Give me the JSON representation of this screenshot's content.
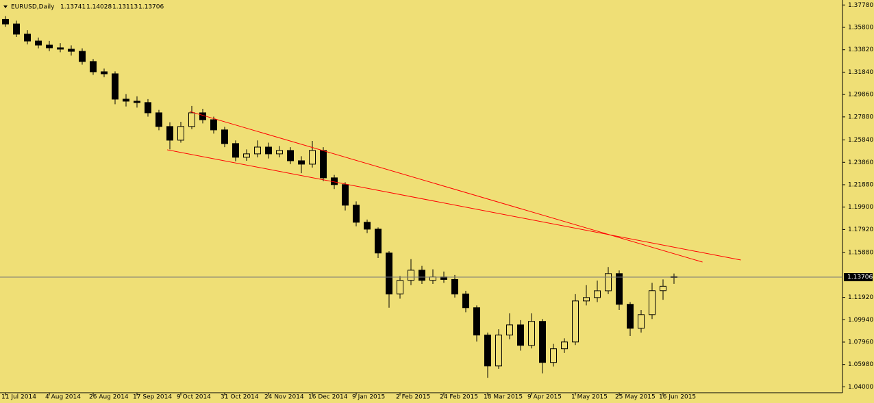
{
  "chart_data": {
    "type": "candlestick",
    "symbol": "EURUSD,Daily",
    "categories": [
      "11 Jul 2014",
      null,
      null,
      null,
      "4 Aug 2014",
      null,
      null,
      null,
      "26 Aug 2014",
      null,
      null,
      null,
      "17 Sep 2014",
      null,
      null,
      null,
      "9 Oct 2014",
      null,
      null,
      null,
      "31 Oct 2014",
      null,
      null,
      null,
      "24 Nov 2014",
      null,
      null,
      null,
      "16 Dec 2014",
      null,
      null,
      null,
      "9 Jan 2015",
      null,
      null,
      null,
      "2 Feb 2015",
      null,
      null,
      null,
      "24 Feb 2015",
      null,
      null,
      null,
      "18 Mar 2015",
      null,
      null,
      null,
      "9 Apr 2015",
      null,
      null,
      null,
      "1 May 2015",
      null,
      null,
      null,
      "25 May 2015",
      null,
      null,
      null,
      "16 Jun 2015",
      null
    ],
    "open": [
      1.365,
      1.361,
      1.352,
      1.3459,
      1.3423,
      1.3399,
      1.3387,
      1.3368,
      1.3278,
      1.3187,
      1.3169,
      1.2945,
      1.2927,
      1.2915,
      1.2824,
      1.2703,
      1.2582,
      1.2703,
      1.2824,
      1.2763,
      1.2673,
      1.2552,
      1.2431,
      1.2461,
      1.2521,
      1.2461,
      1.2491,
      1.24,
      1.237,
      1.2491,
      1.2249,
      1.2189,
      1.2007,
      1.1856,
      1.1795,
      1.1584,
      1.1221,
      1.1342,
      1.1432,
      1.1342,
      1.1372,
      1.135,
      1.1221,
      1.11,
      1.0858,
      1.0585,
      1.0858,
      1.0948,
      1.0767,
      1.0979,
      1.0616,
      1.0737,
      1.0797,
      1.116,
      1.119,
      1.125,
      1.1402,
      1.113,
      1.0918,
      1.1039,
      1.1251,
      1.13741
    ],
    "high": [
      1.368,
      1.364,
      1.3555,
      1.349,
      1.346,
      1.344,
      1.342,
      1.3395,
      1.33,
      1.3215,
      1.319,
      1.299,
      1.297,
      1.2945,
      1.285,
      1.274,
      1.2745,
      1.2885,
      1.286,
      1.279,
      1.27,
      1.258,
      1.25,
      1.258,
      1.256,
      1.253,
      1.252,
      1.244,
      1.2575,
      1.252,
      1.2275,
      1.221,
      1.204,
      1.188,
      1.181,
      1.16,
      1.138,
      1.153,
      1.147,
      1.144,
      1.142,
      1.139,
      1.125,
      1.112,
      1.088,
      1.091,
      1.105,
      1.099,
      1.105,
      1.1,
      1.078,
      1.083,
      1.122,
      1.13,
      1.134,
      1.146,
      1.143,
      1.115,
      1.108,
      1.132,
      1.135,
      1.14028
    ],
    "low": [
      1.3585,
      1.3495,
      1.343,
      1.3395,
      1.337,
      1.336,
      1.333,
      1.325,
      1.316,
      1.314,
      1.29,
      1.288,
      1.287,
      1.279,
      1.267,
      1.25,
      1.256,
      1.268,
      1.273,
      1.264,
      1.252,
      1.2395,
      1.24,
      1.243,
      1.242,
      1.243,
      1.237,
      1.229,
      1.234,
      1.222,
      1.215,
      1.196,
      1.182,
      1.176,
      1.154,
      1.11,
      1.118,
      1.13,
      1.131,
      1.131,
      1.132,
      1.119,
      1.106,
      1.08,
      1.048,
      1.056,
      1.082,
      1.072,
      1.074,
      1.052,
      1.058,
      1.07,
      1.077,
      1.112,
      1.115,
      1.122,
      1.108,
      1.085,
      1.088,
      1.1,
      1.117,
      1.13113
    ],
    "close": [
      1.361,
      1.352,
      1.3459,
      1.3423,
      1.3399,
      1.3387,
      1.3368,
      1.3278,
      1.3187,
      1.3169,
      1.2945,
      1.2927,
      1.2915,
      1.2824,
      1.2703,
      1.2582,
      1.2703,
      1.2824,
      1.2763,
      1.2673,
      1.2552,
      1.2431,
      1.2461,
      1.2521,
      1.2461,
      1.2491,
      1.24,
      1.237,
      1.2491,
      1.2249,
      1.2189,
      1.2007,
      1.1856,
      1.1795,
      1.1584,
      1.1221,
      1.1342,
      1.1432,
      1.1342,
      1.1372,
      1.135,
      1.1221,
      1.11,
      1.0858,
      1.0585,
      1.0858,
      1.0948,
      1.0767,
      1.0979,
      1.0616,
      1.0737,
      1.0797,
      1.116,
      1.119,
      1.125,
      1.1402,
      1.113,
      1.0918,
      1.1039,
      1.1251,
      1.129,
      1.13706
    ],
    "ylim": [
      1.036,
      1.381
    ],
    "yticks": [
      {
        "value": 1.3778,
        "label": "1.37780"
      },
      {
        "value": 1.358,
        "label": "1.35800"
      },
      {
        "value": 1.3382,
        "label": "1.33820"
      },
      {
        "value": 1.3184,
        "label": "1.31840"
      },
      {
        "value": 1.2986,
        "label": "1.29860"
      },
      {
        "value": 1.2788,
        "label": "1.27880"
      },
      {
        "value": 1.2584,
        "label": "1.25840"
      },
      {
        "value": 1.2386,
        "label": "1.23860"
      },
      {
        "value": 1.2188,
        "label": "1.21880"
      },
      {
        "value": 1.199,
        "label": "1.19900"
      },
      {
        "value": 1.1792,
        "label": "1.17920"
      },
      {
        "value": 1.1588,
        "label": "1.15880"
      },
      {
        "value": 1.1192,
        "label": "1.11920"
      },
      {
        "value": 1.0994,
        "label": "1.09940"
      },
      {
        "value": 1.0796,
        "label": "1.07960"
      },
      {
        "value": 1.0598,
        "label": "1.05980"
      },
      {
        "value": 1.04,
        "label": "1.04000"
      }
    ],
    "trendlines": [
      {
        "color": "#ff0000",
        "x": [
          16.8,
          63.6
        ],
        "y": [
          1.2836,
          1.1504
        ]
      },
      {
        "color": "#ff0000",
        "x": [
          14.75,
          67.1
        ],
        "y": [
          1.2497,
          1.1522
        ]
      }
    ]
  }
}
